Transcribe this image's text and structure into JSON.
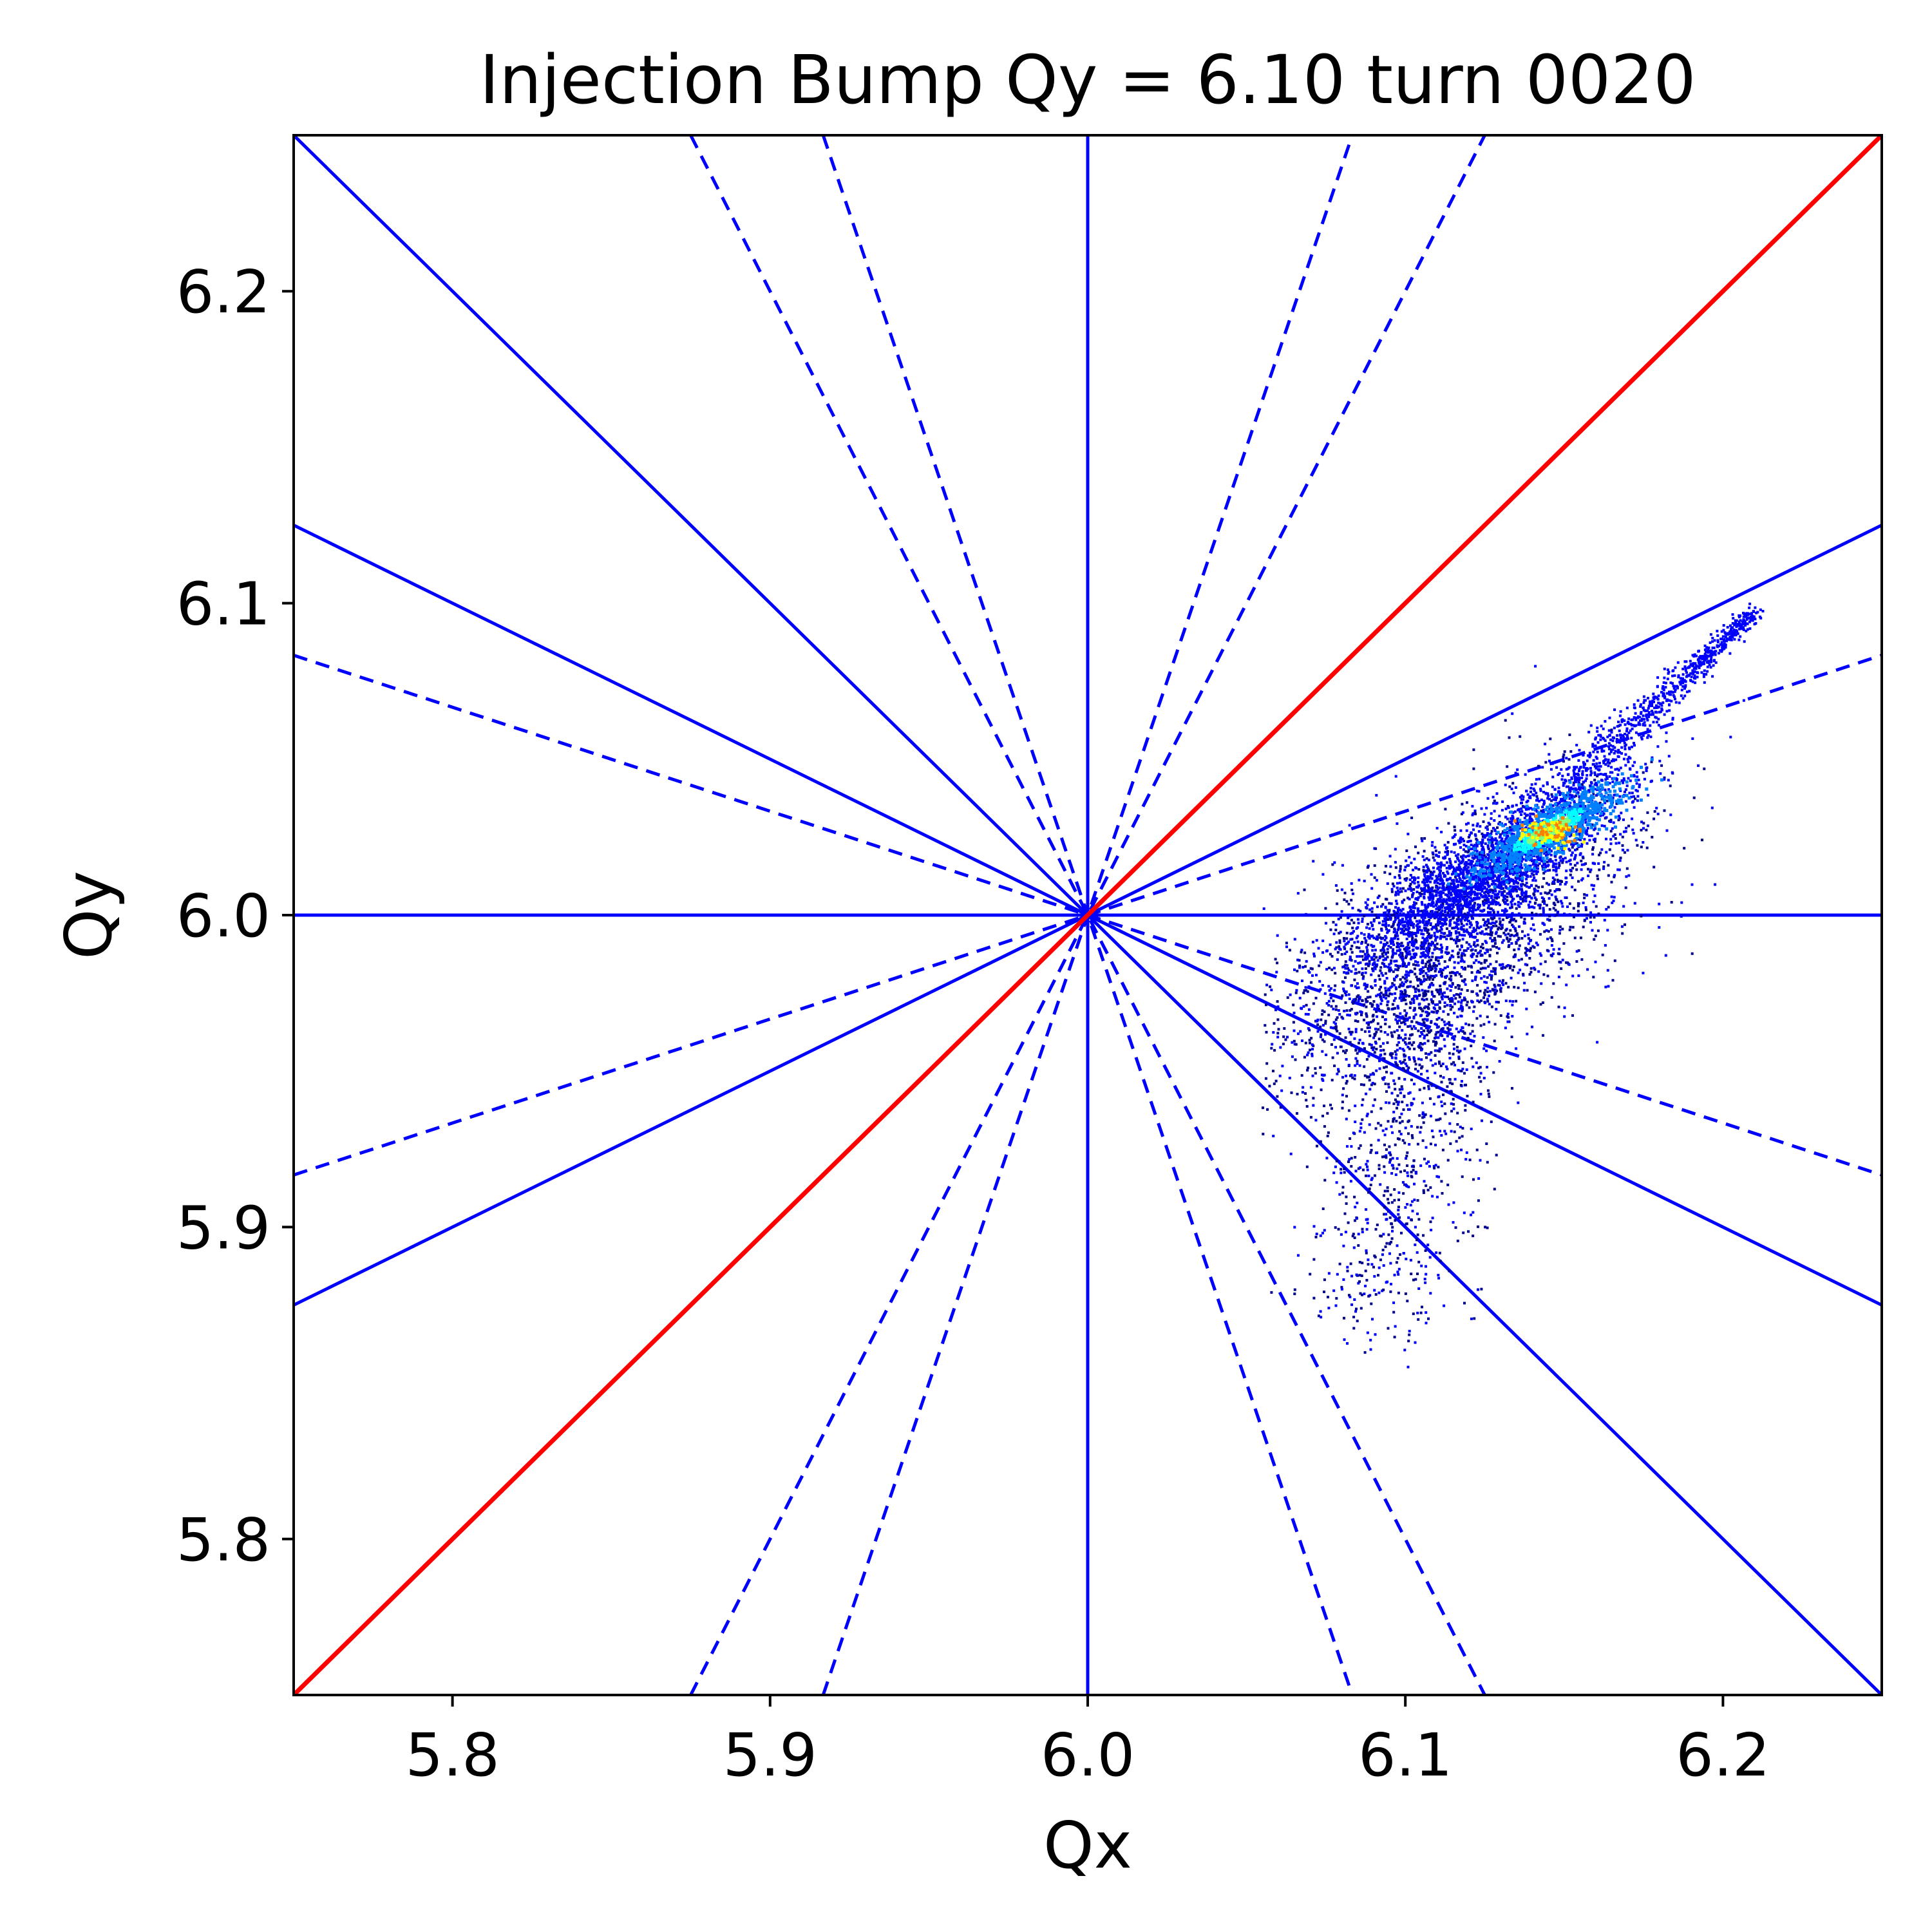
{
  "chart_data": {
    "type": "scatter",
    "title": "Injection Bump Qy = 6.10 turn 0020",
    "xlabel": "Qx",
    "ylabel": "Qy",
    "xlim": [
      5.75,
      6.25
    ],
    "ylim": [
      5.75,
      6.25
    ],
    "xticks": [
      5.8,
      5.9,
      6.0,
      6.1,
      6.2
    ],
    "xtick_labels": [
      "5.8",
      "5.9",
      "6.0",
      "6.1",
      "6.2"
    ],
    "yticks": [
      5.8,
      5.9,
      6.0,
      6.1,
      6.2
    ],
    "ytick_labels": [
      "5.8",
      "5.9",
      "6.0",
      "6.1",
      "6.2"
    ],
    "grid": false,
    "colors": {
      "resonance_line": "#0000ff",
      "coupling_line": "#ff0000",
      "density_colormap": [
        "#00008f",
        "#0000ff",
        "#0080ff",
        "#00ffff",
        "#80ff80",
        "#ffff00",
        "#ff8000",
        "#ff0000"
      ]
    },
    "resonance_lines": [
      {
        "style": "solid",
        "color": "#ff0000",
        "x": [
          5.75,
          6.25
        ],
        "y": [
          5.75,
          6.25
        ]
      },
      {
        "style": "solid",
        "color": "#0000ff",
        "x": [
          5.75,
          6.25
        ],
        "y": [
          6.25,
          5.75
        ]
      },
      {
        "style": "solid",
        "color": "#0000ff",
        "x": [
          6.0,
          6.0
        ],
        "y": [
          5.75,
          6.25
        ]
      },
      {
        "style": "solid",
        "color": "#0000ff",
        "x": [
          5.75,
          6.25
        ],
        "y": [
          6.0,
          6.0
        ]
      },
      {
        "style": "solid",
        "color": "#0000ff",
        "x": [
          5.75,
          6.25
        ],
        "y": [
          5.875,
          6.125
        ]
      },
      {
        "style": "solid",
        "color": "#0000ff",
        "x": [
          5.75,
          6.25
        ],
        "y": [
          6.125,
          5.875
        ]
      },
      {
        "style": "dashed",
        "color": "#0000ff",
        "x": [
          5.75,
          6.25
        ],
        "y": [
          5.9167,
          6.0833
        ]
      },
      {
        "style": "dashed",
        "color": "#0000ff",
        "x": [
          5.75,
          6.25
        ],
        "y": [
          6.0833,
          5.9167
        ]
      },
      {
        "style": "dashed",
        "color": "#0000ff",
        "x": [
          5.875,
          6.125
        ],
        "y": [
          5.75,
          6.25
        ]
      },
      {
        "style": "dashed",
        "color": "#0000ff",
        "x": [
          5.875,
          6.125
        ],
        "y": [
          6.25,
          5.75
        ]
      },
      {
        "style": "dashed",
        "color": "#0000ff",
        "x": [
          5.9167,
          6.0833
        ],
        "y": [
          5.75,
          6.25
        ]
      },
      {
        "style": "dashed",
        "color": "#0000ff",
        "x": [
          5.9167,
          6.0833
        ],
        "y": [
          6.25,
          5.75
        ]
      }
    ],
    "particle_distribution": {
      "core": {
        "center_qx": 6.145,
        "center_qy": 6.027,
        "peak_density": "high"
      },
      "extent_qx": [
        6.06,
        6.21
      ],
      "extent_qy": [
        5.86,
        6.1
      ],
      "upper_tail": {
        "from_qx": 6.15,
        "from_qy": 6.04,
        "to_qx": 6.21,
        "to_qy": 6.097
      },
      "lower_tail": {
        "from_qx": 6.11,
        "from_qy": 5.98,
        "to_qx": 6.09,
        "to_qy": 5.87
      }
    }
  }
}
